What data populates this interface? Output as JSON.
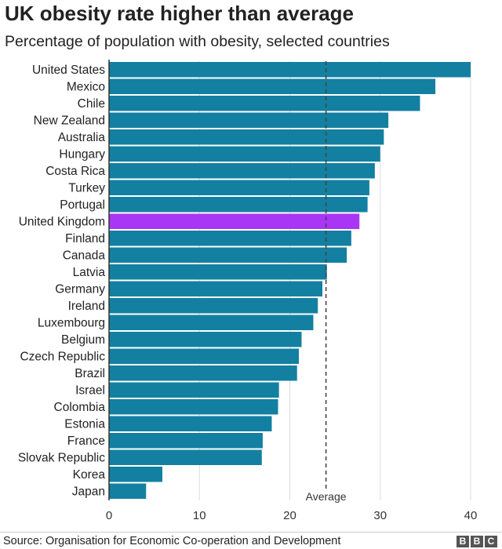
{
  "chart_data": {
    "type": "bar",
    "orientation": "horizontal",
    "title": "UK obesity rate higher than average",
    "subtitle": "Percentage of population with obesity, selected countries",
    "categories": [
      "United States",
      "Mexico",
      "Chile",
      "New Zealand",
      "Australia",
      "Hungary",
      "Costa Rica",
      "Turkey",
      "Portugal",
      "United Kingdom",
      "Finland",
      "Canada",
      "Latvia",
      "Germany",
      "Ireland",
      "Luxembourg",
      "Belgium",
      "Czech Republic",
      "Brazil",
      "Israel",
      "Colombia",
      "Estonia",
      "France",
      "Slovak Republic",
      "Korea",
      "Japan"
    ],
    "values": [
      40.0,
      36.1,
      34.4,
      30.9,
      30.4,
      30.0,
      29.4,
      28.8,
      28.6,
      27.7,
      26.8,
      26.3,
      24.1,
      23.6,
      23.1,
      22.6,
      21.3,
      21.0,
      20.8,
      18.8,
      18.7,
      18.0,
      17.0,
      16.9,
      5.9,
      4.1
    ],
    "highlight": "United Kingdom",
    "average": 24.0,
    "average_label": "Average",
    "xlim": [
      0,
      40
    ],
    "xticks": [
      0,
      10,
      20,
      30,
      40
    ],
    "grid": true,
    "colors": {
      "bar": "#1380a1",
      "highlight": "#a935f5",
      "grid": "#dddddd",
      "average": "#444444"
    }
  },
  "footer": {
    "source": "Source: Organisation for Economic Co-operation and Development",
    "logo": [
      "B",
      "B",
      "C"
    ]
  }
}
